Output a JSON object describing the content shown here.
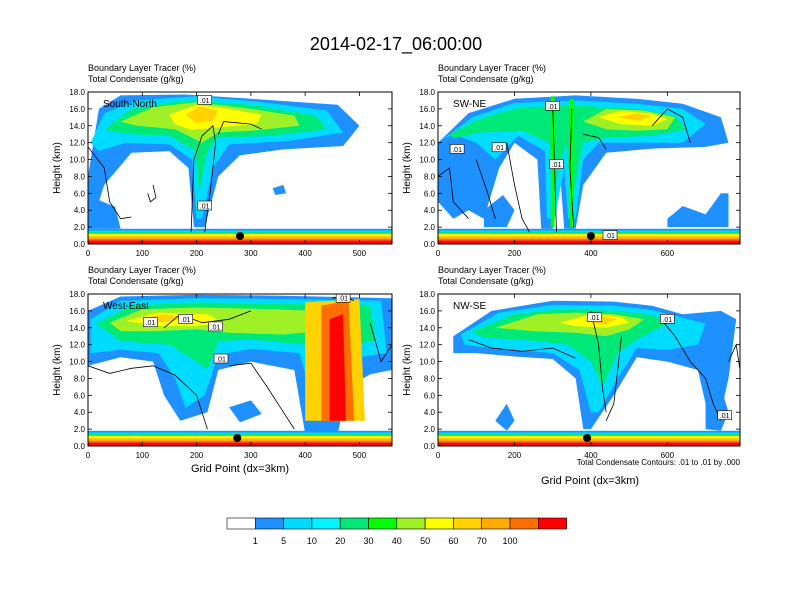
{
  "title": "2014-02-17_06:00:00",
  "chart_data": [
    {
      "type": "heatmap",
      "panel_label": "South-North",
      "subtitle_line1": "Boundary Layer Tracer   (%)",
      "subtitle_line2": "Total Condensate   (g/kg)",
      "ylabel": "Height (km)",
      "ylim": [
        0,
        18
      ],
      "xlim": [
        0,
        560
      ],
      "yticks": [
        "0.0",
        "2.0",
        "4.0",
        "6.0",
        "8.0",
        "10.0",
        "12.0",
        "14.0",
        "16.0",
        "18.0"
      ],
      "xticks": [
        0,
        100,
        200,
        300,
        400,
        500
      ],
      "marker_x": 280,
      "contour_labels": [
        {
          "text": ".01",
          "x": 215,
          "y": 17.0
        },
        {
          "text": ".01",
          "x": 215,
          "y": 4.5
        }
      ]
    },
    {
      "type": "heatmap",
      "panel_label": "SW-NE",
      "subtitle_line1": "Boundary Layer Tracer   (%)",
      "subtitle_line2": "Total Condensate   (g/kg)",
      "ylabel": "Height (km)",
      "ylim": [
        0,
        18
      ],
      "xlim": [
        0,
        790
      ],
      "yticks": [
        "0.0",
        "2.0",
        "4.0",
        "6.0",
        "8.0",
        "10.0",
        "12.0",
        "14.0",
        "16.0",
        "18.0"
      ],
      "xticks": [
        0,
        200,
        400,
        600
      ],
      "marker_x": 400,
      "contour_labels": [
        {
          "text": ".01",
          "x": 50,
          "y": 11.2
        },
        {
          "text": ".01",
          "x": 160,
          "y": 11.4
        },
        {
          "text": ".01",
          "x": 300,
          "y": 16.3
        },
        {
          "text": ".01",
          "x": 310,
          "y": 9.4
        },
        {
          "text": ".01",
          "x": 450,
          "y": 1.0
        }
      ]
    },
    {
      "type": "heatmap",
      "panel_label": "West-East",
      "subtitle_line1": "Boundary Layer Tracer   (%)",
      "subtitle_line2": "Total Condensate   (g/kg)",
      "ylabel": "Height (km)",
      "ylim": [
        0,
        18
      ],
      "xlim": [
        0,
        560
      ],
      "yticks": [
        "0.0",
        "2.0",
        "4.0",
        "6.0",
        "8.0",
        "10.0",
        "12.0",
        "14.0",
        "16.0",
        "18.0"
      ],
      "xticks": [
        0,
        100,
        200,
        300,
        400,
        500
      ],
      "marker_x": 275,
      "contour_labels": [
        {
          "text": ".01",
          "x": 115,
          "y": 14.6
        },
        {
          "text": ".01",
          "x": 180,
          "y": 15.0
        },
        {
          "text": ".01",
          "x": 235,
          "y": 14.1
        },
        {
          "text": ".01",
          "x": 245,
          "y": 10.3
        },
        {
          "text": ".01",
          "x": 470,
          "y": 17.5
        }
      ]
    },
    {
      "type": "heatmap",
      "panel_label": "NW-SE",
      "subtitle_line1": "Boundary Layer Tracer   (%)",
      "subtitle_line2": "Total Condensate   (g/kg)",
      "ylabel": "Height (km)",
      "ylim": [
        0,
        18
      ],
      "xlim": [
        0,
        790
      ],
      "yticks": [
        "0.0",
        "2.0",
        "4.0",
        "6.0",
        "8.0",
        "10.0",
        "12.0",
        "14.0",
        "16.0",
        "18.0"
      ],
      "xticks": [
        0,
        200,
        400,
        600
      ],
      "marker_x": 390,
      "contour_labels": [
        {
          "text": ".01",
          "x": 410,
          "y": 15.2
        },
        {
          "text": ".01",
          "x": 600,
          "y": 15.0
        },
        {
          "text": ".01",
          "x": 750,
          "y": 3.6
        }
      ]
    }
  ],
  "xlabel": "Grid Point (dx=3km)",
  "contour_info": "Total Condensate Contours: .01 to .01 by .000",
  "colorbar": {
    "labels": [
      "1",
      "5",
      "10",
      "20",
      "30",
      "40",
      "50",
      "60",
      "70",
      "100"
    ],
    "colors": [
      "#ffffff",
      "#1e90ff",
      "#00dcff",
      "#00f5ff",
      "#00e878",
      "#00ff00",
      "#a0f028",
      "#ffff00",
      "#ffd200",
      "#ffaa00",
      "#ff6e00",
      "#ff0000"
    ]
  }
}
